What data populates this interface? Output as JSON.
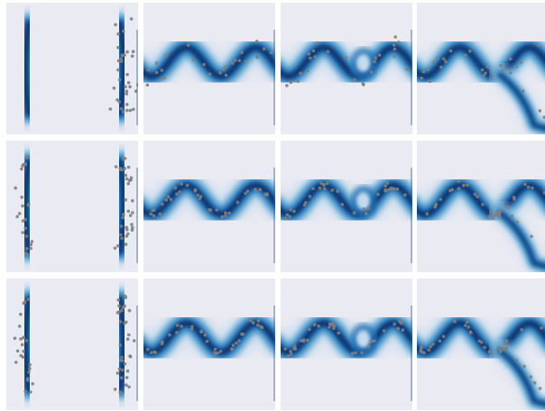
{
  "chart_data": {
    "type": "heatmap",
    "description_free": true,
    "rows": 3,
    "cols": 4,
    "panel_background": "#eaeaf2",
    "colormap": [
      "#eaeaf2",
      "#c6dbef",
      "#6baed6",
      "#2171b5",
      "#08306b"
    ],
    "point_color": "#7f7f7f",
    "panels": [
      {
        "row": 0,
        "col": 0,
        "kind": "crescents",
        "points": "scattered-right"
      },
      {
        "row": 0,
        "col": 1,
        "kind": "sine",
        "points": "sparse"
      },
      {
        "row": 0,
        "col": 2,
        "kind": "sine-ring",
        "points": "sparse"
      },
      {
        "row": 0,
        "col": 3,
        "kind": "sine-branch",
        "points": "sparse"
      },
      {
        "row": 1,
        "col": 0,
        "kind": "crescents",
        "points": "both"
      },
      {
        "row": 1,
        "col": 1,
        "kind": "sine",
        "points": "along"
      },
      {
        "row": 1,
        "col": 2,
        "kind": "sine-ring",
        "points": "along"
      },
      {
        "row": 1,
        "col": 3,
        "kind": "sine-branch",
        "points": "along"
      },
      {
        "row": 2,
        "col": 0,
        "kind": "crescents",
        "points": "both"
      },
      {
        "row": 2,
        "col": 1,
        "kind": "sine",
        "points": "along"
      },
      {
        "row": 2,
        "col": 2,
        "kind": "sine-ring",
        "points": "along"
      },
      {
        "row": 2,
        "col": 3,
        "kind": "sine-branch",
        "points": "along"
      }
    ]
  }
}
